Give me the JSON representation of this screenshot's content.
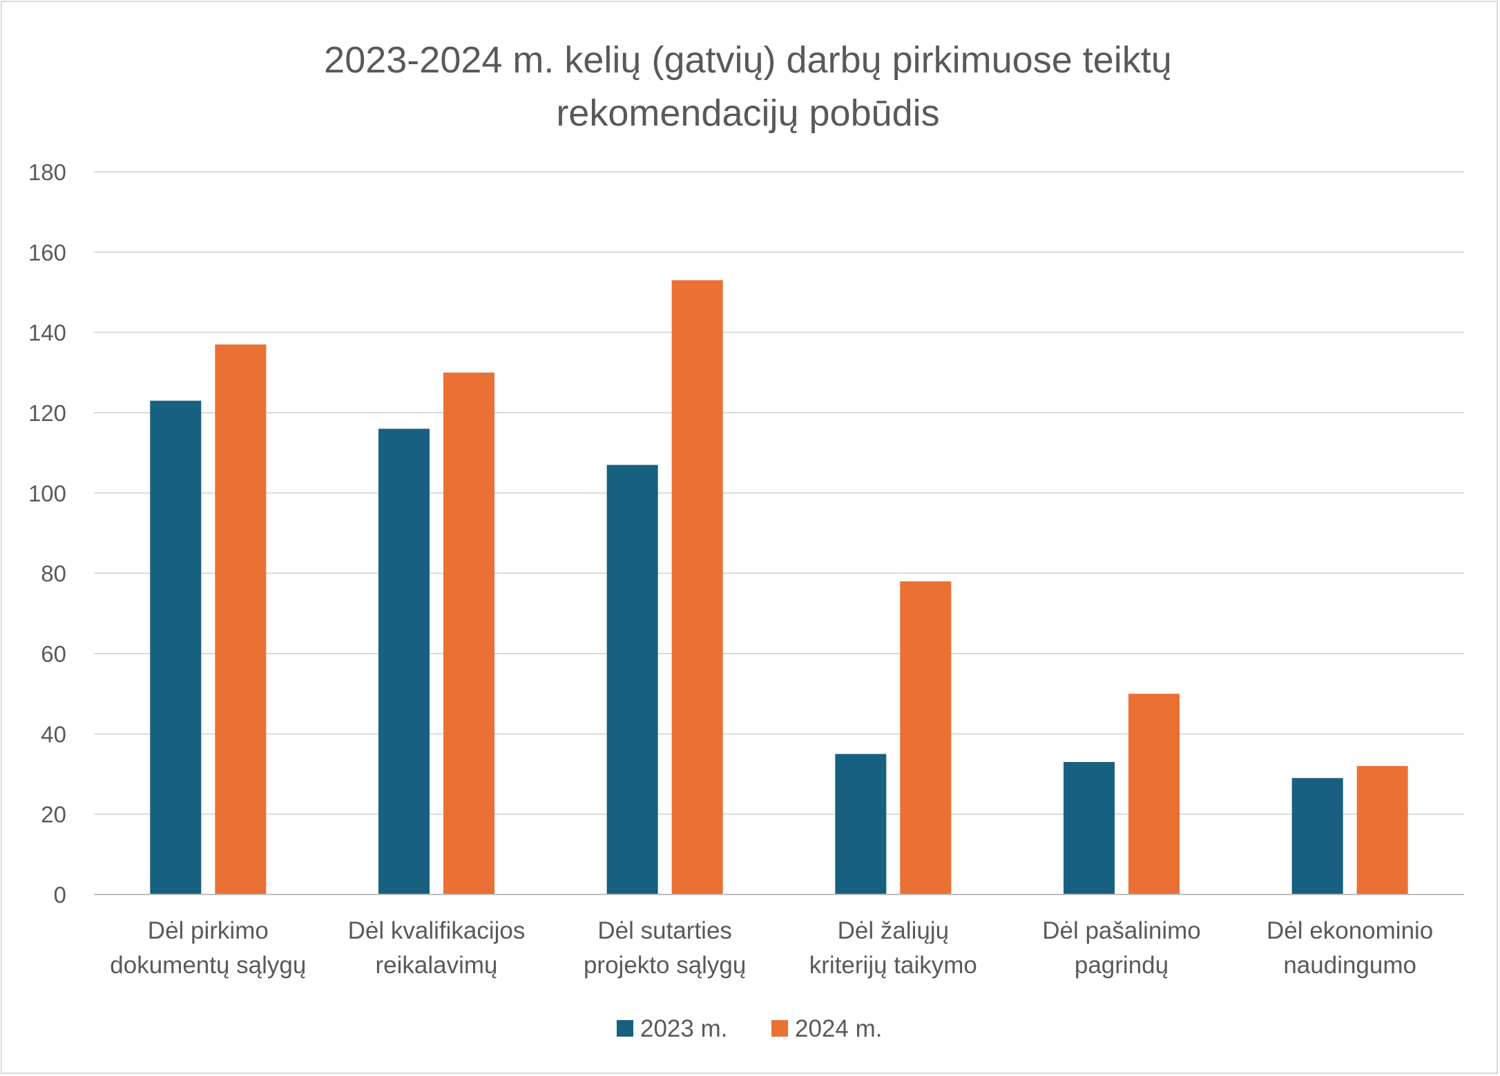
{
  "chart_data": {
    "type": "bar",
    "title_lines": [
      "2023-2024 m. kelių (gatvių) darbų pirkimuose teiktų",
      "rekomendacijų pobūdis"
    ],
    "categories": [
      [
        "Dėl pirkimo",
        "dokumentų sąlygų"
      ],
      [
        "Dėl kvalifikacijos",
        "reikalavimų"
      ],
      [
        "Dėl sutarties",
        "projekto sąlygų"
      ],
      [
        "Dėl žaliųjų",
        "kriterijų taikymo"
      ],
      [
        "Dėl pašalinimo",
        "pagrindų"
      ],
      [
        "Dėl ekonominio",
        "naudingumo"
      ]
    ],
    "series": [
      {
        "name": "2023 m.",
        "color": "#17607f",
        "values": [
          123,
          116,
          107,
          35,
          33,
          29
        ]
      },
      {
        "name": "2024 m.",
        "color": "#ea7033",
        "values": [
          137,
          130,
          153,
          78,
          50,
          32
        ]
      }
    ],
    "ylim": [
      0,
      180
    ],
    "yticks": [
      "0",
      "20",
      "40",
      "60",
      "80",
      "100",
      "120",
      "140",
      "160",
      "180"
    ],
    "grid": true,
    "legend_position": "bottom"
  }
}
